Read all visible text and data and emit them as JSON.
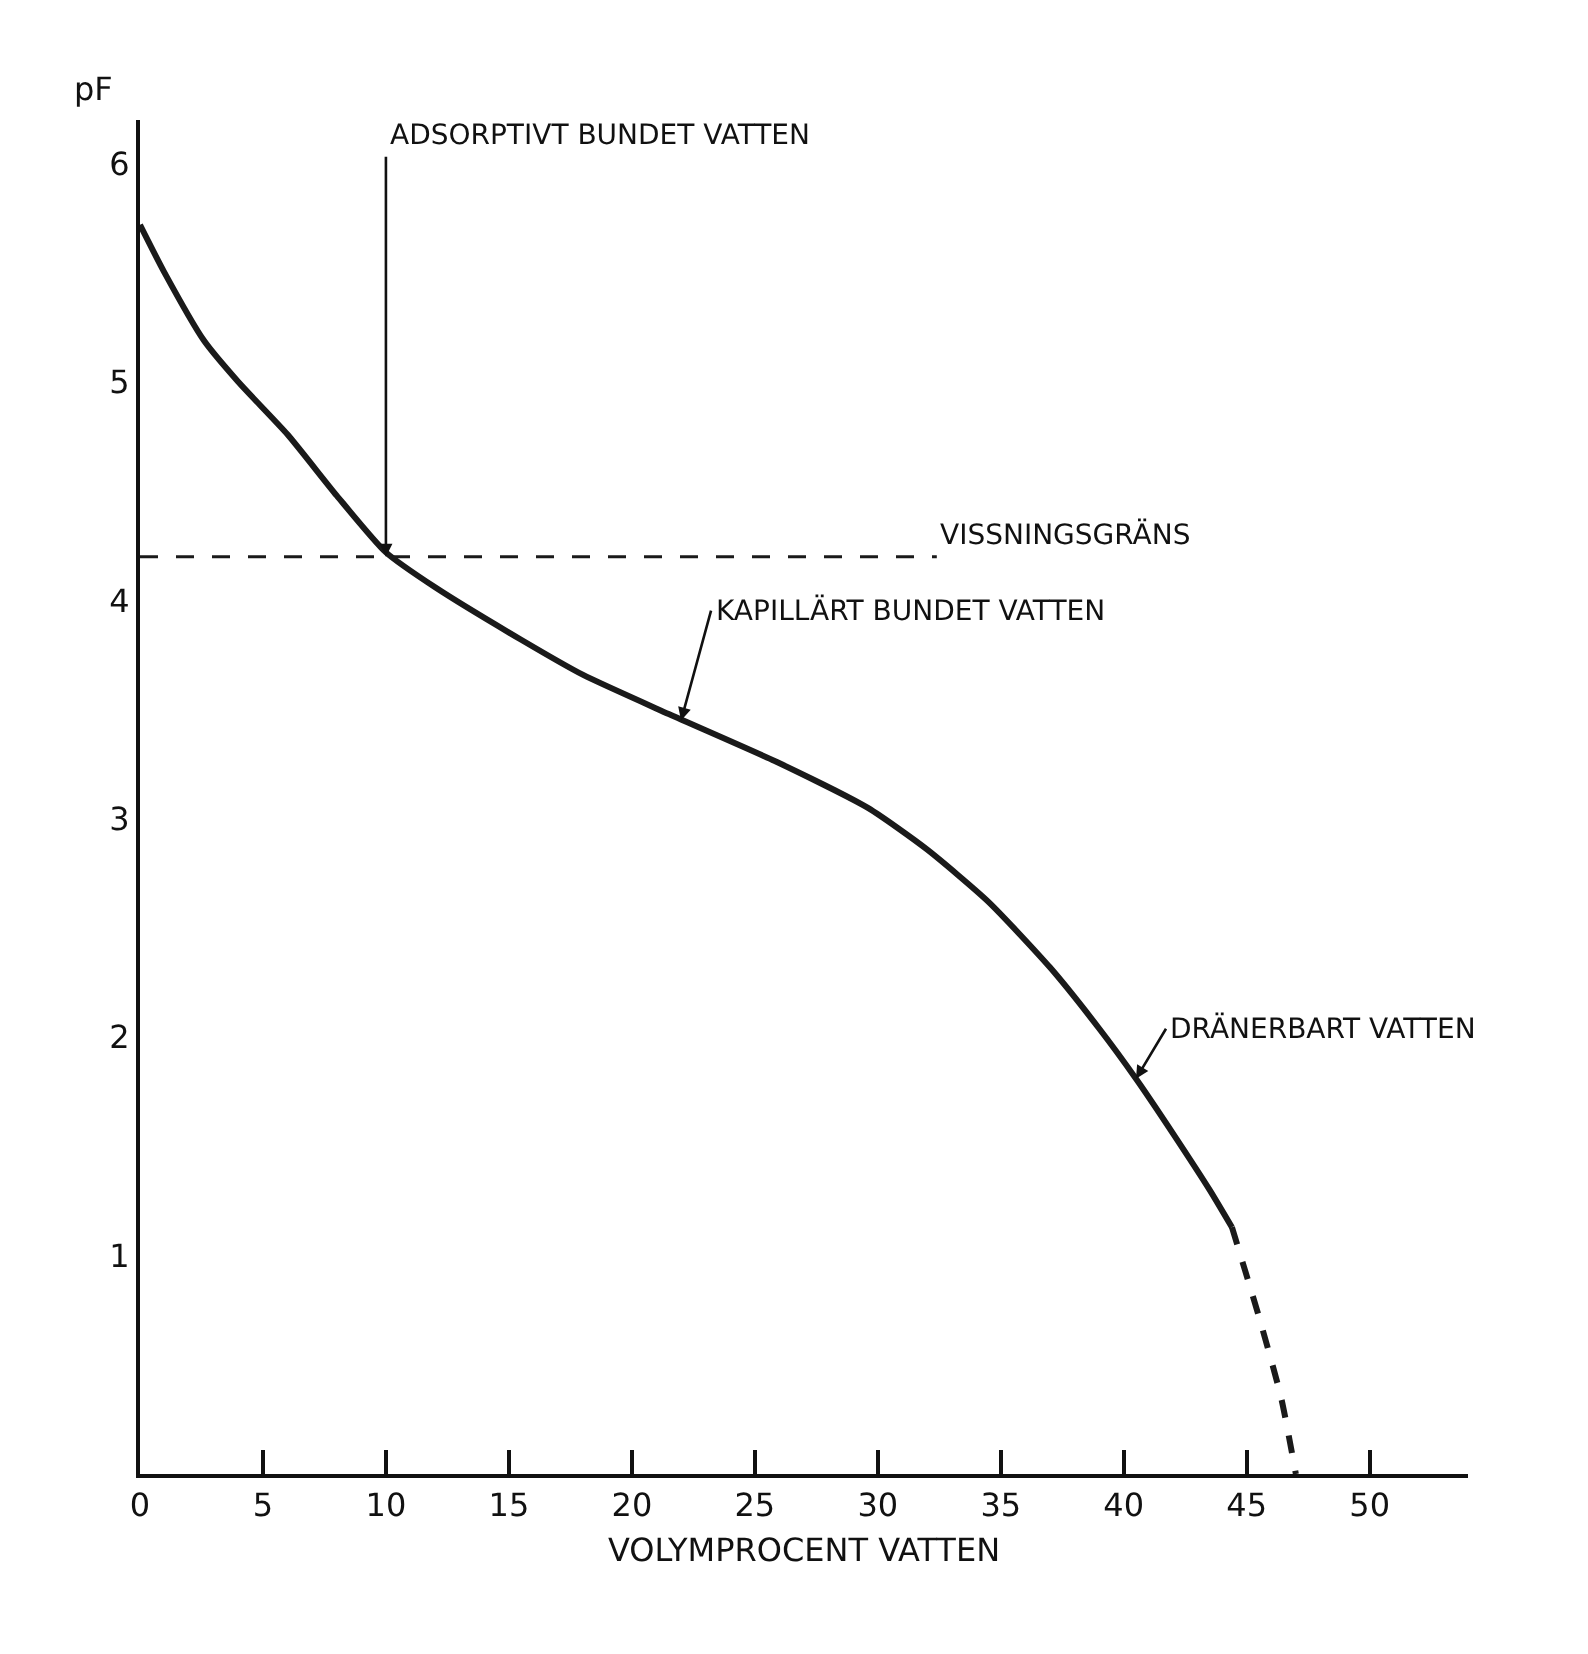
{
  "chart_data": {
    "type": "line",
    "xlabel": "VOLYMPROCENT VATTEN",
    "ylabel": "pF",
    "xlim": [
      0,
      54
    ],
    "xticks": [
      0,
      5,
      10,
      15,
      20,
      25,
      30,
      35,
      40,
      45,
      50
    ],
    "ylim": [
      0,
      6.2
    ],
    "yticks": [
      1,
      2,
      3,
      4,
      5,
      6
    ],
    "series": [
      {
        "color": "#1a1a1a",
        "line_style": "solid",
        "x": [
          0,
          1,
          2.6,
          4,
          6,
          8,
          10,
          12,
          15.5,
          18,
          21.5,
          25.9,
          29.6,
          32,
          34.5,
          37,
          39,
          40.5,
          42,
          43.5,
          44.4
        ],
        "values": [
          5.72,
          5.5,
          5.19,
          5.0,
          4.76,
          4.48,
          4.22,
          4.06,
          3.82,
          3.66,
          3.48,
          3.26,
          3.05,
          2.86,
          2.62,
          2.32,
          2.04,
          1.81,
          1.56,
          1.3,
          1.13
        ]
      },
      {
        "color": "#1a1a1a",
        "line_style": "dashed",
        "x": [
          44.4,
          45.5,
          46.4,
          47
        ],
        "values": [
          1.13,
          0.72,
          0.35,
          0
        ]
      }
    ],
    "ref_lines": [
      {
        "axis": "y",
        "value": 4.2,
        "label": "VISSNINGSGRÄNS",
        "line_style": "dashed",
        "color": "#1a1a1a"
      }
    ],
    "annotations": [
      {
        "text": "ADSORPTIVT BUNDET VATTEN",
        "x": 10,
        "y": 4.2
      },
      {
        "text": "KAPILLÄRT BUNDET VATTEN",
        "x": 22,
        "y": 3.45
      },
      {
        "text": "DRÄNERBART VATTEN",
        "x": 40.5,
        "y": 1.81
      }
    ],
    "grid": false,
    "marker": "none"
  }
}
